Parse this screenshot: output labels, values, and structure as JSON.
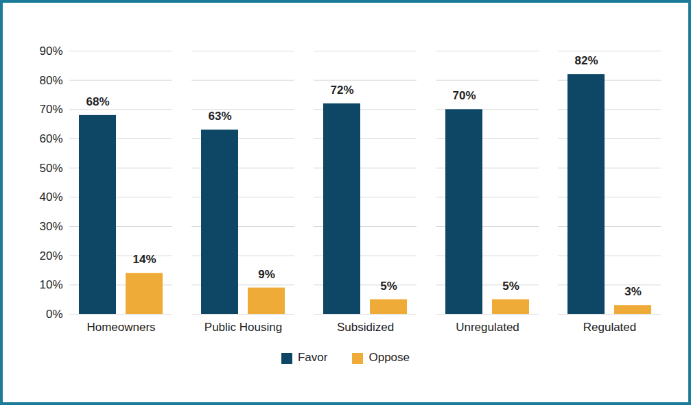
{
  "chart_data": {
    "type": "bar",
    "categories": [
      "Homeowners",
      "Public Housing",
      "Subsidized",
      "Unregulated",
      "Regulated"
    ],
    "series": [
      {
        "name": "Favor",
        "color": "#0d4765",
        "values": [
          68,
          63,
          72,
          70,
          82
        ],
        "value_labels": [
          "68%",
          "63%",
          "72%",
          "70%",
          "82%"
        ]
      },
      {
        "name": "Oppose",
        "color": "#efab37",
        "values": [
          14,
          9,
          5,
          5,
          3
        ],
        "value_labels": [
          "14%",
          "9%",
          "5%",
          "5%",
          "3%"
        ]
      }
    ],
    "ylim": [
      0,
      90
    ],
    "yticks": [
      {
        "value": 0,
        "label": "0%"
      },
      {
        "value": 10,
        "label": "10%"
      },
      {
        "value": 20,
        "label": "20%"
      },
      {
        "value": 30,
        "label": "30%"
      },
      {
        "value": 40,
        "label": "40%"
      },
      {
        "value": 50,
        "label": "50%"
      },
      {
        "value": 60,
        "label": "60%"
      },
      {
        "value": 70,
        "label": "70%"
      },
      {
        "value": 80,
        "label": "80%"
      },
      {
        "value": 90,
        "label": "90%"
      }
    ],
    "grid": true,
    "data_labels": true,
    "legend": "bottom"
  }
}
